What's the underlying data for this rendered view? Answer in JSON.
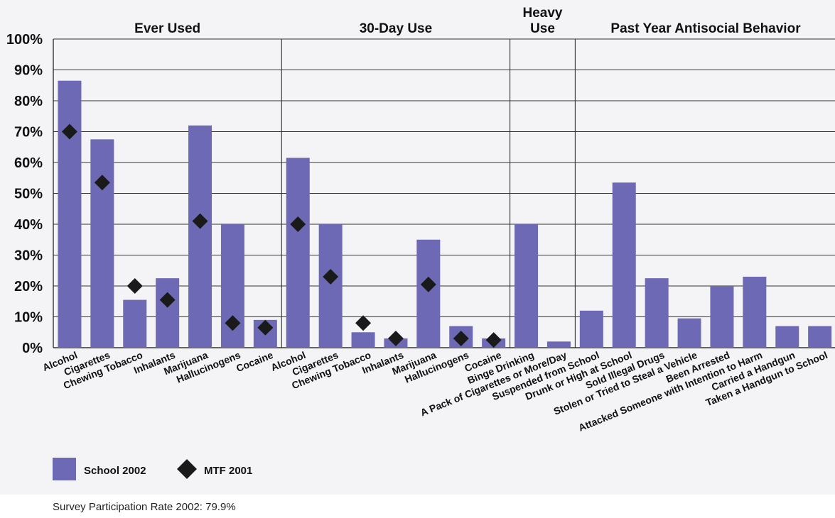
{
  "colors": {
    "bar": "#6e69b5",
    "marker": "#1a1a1a",
    "grid": "#333333",
    "background": "#f4f3f6"
  },
  "chart_data": {
    "type": "bar",
    "ylim": [
      0,
      100
    ],
    "y_ticks": [
      {
        "value": 0,
        "label": "0%"
      },
      {
        "value": 10,
        "label": "10%"
      },
      {
        "value": 20,
        "label": "20%"
      },
      {
        "value": 30,
        "label": "30%"
      },
      {
        "value": 40,
        "label": "40%"
      },
      {
        "value": 50,
        "label": "50%"
      },
      {
        "value": 60,
        "label": "60%"
      },
      {
        "value": 70,
        "label": "70%"
      },
      {
        "value": 80,
        "label": "80%"
      },
      {
        "value": 90,
        "label": "90%"
      },
      {
        "value": 100,
        "label": "100%"
      }
    ],
    "grid": true,
    "legend_position": "bottom-left",
    "groups": [
      {
        "title": [
          "Ever Used"
        ],
        "count": 7
      },
      {
        "title": [
          "30-Day Use"
        ],
        "count": 7
      },
      {
        "title": [
          "Heavy",
          "Use"
        ],
        "count": 2
      },
      {
        "title": [
          "Past Year Antisocial Behavior"
        ],
        "count": 8
      }
    ],
    "categories": [
      "Alcohol",
      "Cigarettes",
      "Chewing Tobacco",
      "Inhalants",
      "Marijuana",
      "Hallucinogens",
      "Cocaine",
      "Alcohol",
      "Cigarettes",
      "Chewing Tobacco",
      "Inhalants",
      "Marijuana",
      "Hallucinogens",
      "Cocaine",
      "Binge Drinking",
      "A Pack of Cigarettes or More/Day",
      "Suspended from School",
      "Drunk or High at School",
      "Sold Illegal Drugs",
      "Stolen or Tried to Steal a Vehicle",
      "Been Arrested",
      "Attacked Someone with Intention to Harm",
      "Carried a Handgun",
      "Taken a Handgun to School"
    ],
    "series": [
      {
        "name": "School 2002",
        "kind": "bar",
        "values": [
          86.5,
          67.5,
          15.5,
          22.5,
          72,
          40,
          9,
          61.5,
          40,
          5,
          3,
          35,
          7,
          3,
          40,
          2,
          12,
          53.5,
          22.5,
          9.5,
          20,
          23,
          7,
          7
        ]
      },
      {
        "name": "MTF 2001",
        "kind": "marker",
        "values": [
          70,
          53.5,
          20,
          15.5,
          41,
          8,
          6.5,
          40,
          23,
          8,
          3,
          20.5,
          3,
          2.5,
          null,
          null,
          null,
          null,
          null,
          null,
          null,
          null,
          null,
          null
        ]
      }
    ]
  },
  "legend": {
    "bar_label": "School 2002",
    "marker_label": "MTF 2001"
  },
  "footnote": "Survey Participation Rate 2002: 79.9%"
}
